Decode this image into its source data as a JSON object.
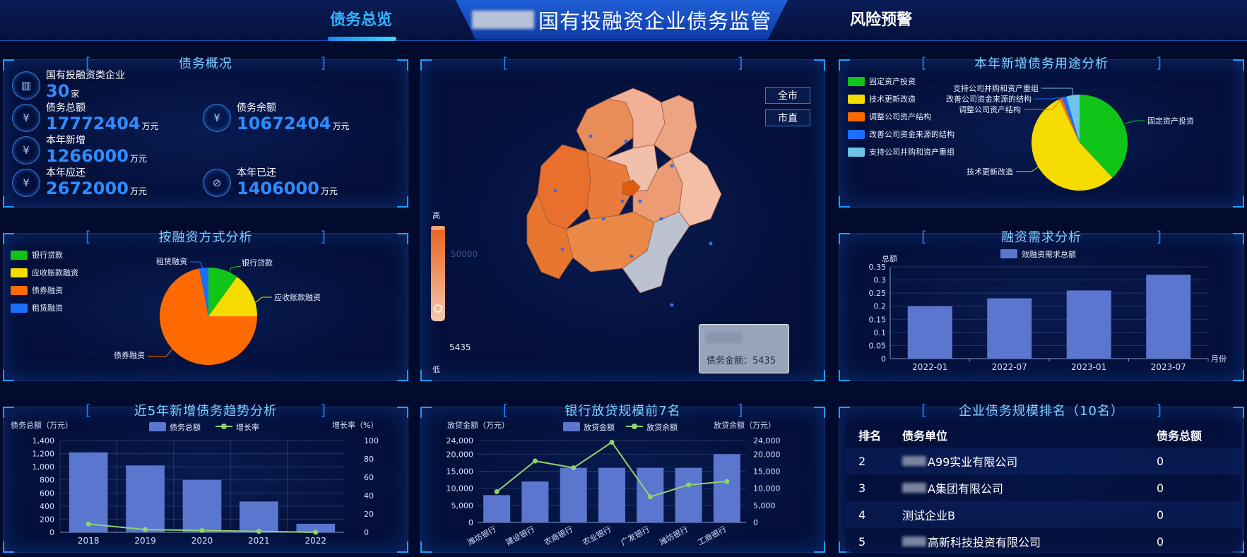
{
  "header": {
    "title": "国有投融资企业债务监管",
    "tab_overview": "债务总览",
    "tab_risk": "风险预警"
  },
  "overview": {
    "title": "债务概况",
    "items": [
      {
        "label": "国有投融资类企业",
        "value": "30",
        "unit": "家",
        "icon": "building-icon"
      },
      {
        "label": "债务总额",
        "value": "17772404",
        "unit": "万元",
        "icon": "clipboard-icon"
      },
      {
        "label": "债务余额",
        "value": "10672404",
        "unit": "万元",
        "icon": "clipboard-icon"
      },
      {
        "label": "本年新增",
        "value": "1266000",
        "unit": "万元",
        "icon": "yen-icon"
      },
      {
        "label": "本年应还",
        "value": "2672000",
        "unit": "万元",
        "icon": "yen-icon"
      },
      {
        "label": "本年已还",
        "value": "1406000",
        "unit": "万元",
        "icon": "no-yen-icon"
      }
    ]
  },
  "financing_method": {
    "title": "按融资方式分析",
    "legend": [
      "银行贷款",
      "应收账款融资",
      "债券融资",
      "租赁融资"
    ],
    "colors": [
      "#11c418",
      "#f5dc00",
      "#ff6a00",
      "#1a6fff"
    ]
  },
  "map_panel": {
    "btn_all": "全市",
    "btn_direct": "市直",
    "scale_high": "高",
    "scale_low": "低",
    "scale_max": "50000",
    "scale_value": "5435",
    "tooltip_label": "债务金额：5435"
  },
  "usage": {
    "title": "本年新增债务用途分析",
    "legend": [
      "固定资产投资",
      "技术更新改造",
      "调整公司资产结构",
      "改善公司资金来源的结构",
      "支持公司并购和资产重组"
    ],
    "colors": [
      "#11c418",
      "#f5dc00",
      "#ff6a00",
      "#1a6fff",
      "#6ec4e8"
    ]
  },
  "demand": {
    "title": "融资需求分析",
    "legend": "效融资需求总额",
    "ylabel": "总额",
    "xlabel": "月份",
    "yticks": [
      "0",
      "0.05",
      "0.1",
      "0.15",
      "0.2",
      "0.25",
      "0.3",
      "0.35"
    ]
  },
  "trend": {
    "title": "近5年新增债务趋势分析",
    "ylabel_left": "债务总额（万元）",
    "ylabel_right": "增长率（%）",
    "legend_bar": "债务总额",
    "legend_line": "增长率",
    "yticks_left": [
      "0",
      "200",
      "400",
      "600",
      "800",
      "1,000",
      "1,200",
      "1,400"
    ],
    "yticks_right": [
      "0",
      "20",
      "40",
      "60",
      "80",
      "100"
    ]
  },
  "bank": {
    "title": "银行放贷规模前7名",
    "ylabel_left": "放贷金额（万元）",
    "ylabel_right": "放贷余额（万元）",
    "legend_bar": "放贷金额",
    "legend_line": "放贷余额",
    "yticks": [
      "0",
      "5,000",
      "10,000",
      "15,000",
      "20,000",
      "24,000"
    ]
  },
  "ranking": {
    "title": "企业债务规模排名（10名）",
    "headers": [
      "排名",
      "债务单位",
      "债务总额"
    ],
    "rows": [
      {
        "rank": "2",
        "name": "A99实业有限公司",
        "amount": "0",
        "blurred": true
      },
      {
        "rank": "3",
        "name": "A集团有限公司",
        "amount": "0",
        "blurred": true
      },
      {
        "rank": "4",
        "name": "测试企业B",
        "amount": "0",
        "blurred": false
      },
      {
        "rank": "5",
        "name": "高新科技投资有限公司",
        "amount": "0",
        "blurred": true
      }
    ]
  },
  "chart_data": [
    {
      "type": "pie",
      "title": "按融资方式分析",
      "labels": [
        "银行贷款",
        "应收账款融资",
        "债券融资",
        "租赁融资"
      ],
      "values": [
        10,
        15,
        72,
        3
      ]
    },
    {
      "type": "pie",
      "title": "本年新增债务用途分析",
      "labels": [
        "固定资产投资",
        "技术更新改造",
        "调整公司资产结构",
        "改善公司资金来源的结构",
        "支持公司并购和资产重组"
      ],
      "values": [
        38,
        55,
        1,
        1.5,
        4.5
      ]
    },
    {
      "type": "bar",
      "title": "融资需求分析",
      "categories": [
        "2022-01",
        "2022-07",
        "2023-01",
        "2023-07"
      ],
      "series": [
        {
          "name": "效融资需求总额",
          "values": [
            0.2,
            0.23,
            0.26,
            0.32
          ]
        }
      ],
      "xlabel": "月份",
      "ylabel": "总额",
      "ylim": [
        0,
        0.35
      ]
    },
    {
      "type": "bar",
      "title": "近5年新增债务趋势分析",
      "categories": [
        "2018",
        "2019",
        "2020",
        "2021",
        "2022"
      ],
      "series": [
        {
          "name": "债务总额",
          "values": [
            1220,
            1020,
            800,
            470,
            130
          ]
        },
        {
          "name": "增长率",
          "values": [
            9,
            3,
            2,
            1,
            0
          ]
        }
      ],
      "ylim": [
        0,
        1400
      ],
      "y2lim": [
        0,
        100
      ]
    },
    {
      "type": "bar",
      "title": "银行放贷规模前7名",
      "categories": [
        "潍坊银行",
        "建设银行",
        "农商银行",
        "农业银行",
        "广发银行",
        "潍坊银行",
        "工商银行"
      ],
      "series": [
        {
          "name": "放贷金额",
          "values": [
            8000,
            12000,
            16000,
            16000,
            16000,
            16000,
            20000
          ]
        },
        {
          "name": "放贷余额",
          "values": [
            9000,
            18000,
            16000,
            23500,
            7500,
            11000,
            12000
          ]
        }
      ],
      "ylim": [
        0,
        24000
      ]
    }
  ]
}
